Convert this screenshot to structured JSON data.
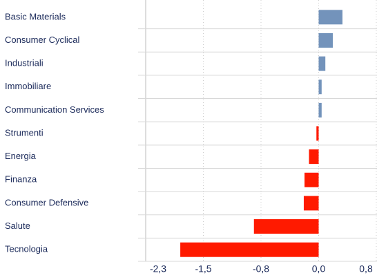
{
  "chart_data": {
    "type": "hbar",
    "categories": [
      "Basic Materials",
      "Consumer Cyclical",
      "Industriali",
      "Immobiliare",
      "Communication Services",
      "Strumenti",
      "Energia",
      "Finanza",
      "Consumer Defensive",
      "Salute",
      "Tecnologia"
    ],
    "values": [
      0.32,
      0.19,
      0.09,
      0.04,
      0.04,
      -0.03,
      -0.13,
      -0.19,
      -0.2,
      -0.87,
      -1.86
    ],
    "positive_color": "#7393bb",
    "negative_color": "#ff1a00",
    "xlim": [
      -2.325,
      0.775
    ],
    "xticks": [
      {
        "value": -2.325,
        "label": "-2,3"
      },
      {
        "value": -1.55,
        "label": "-1,5"
      },
      {
        "value": -0.775,
        "label": "-0,8"
      },
      {
        "value": 0,
        "label": "0,0"
      },
      {
        "value": 0.775,
        "label": "0,8"
      }
    ],
    "grid": true
  }
}
